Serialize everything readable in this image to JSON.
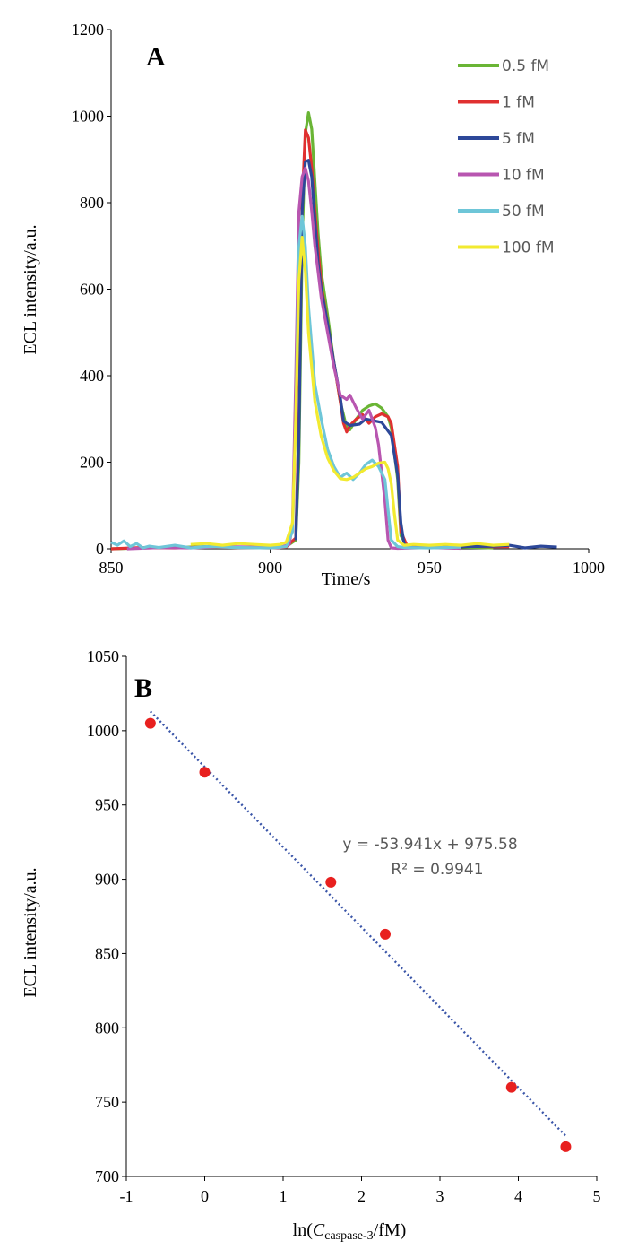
{
  "chart_data": [
    {
      "type": "line",
      "panel_label": "A",
      "xlabel": "Time/s",
      "ylabel": "ECL intensity/a.u.",
      "xlim": [
        850,
        1000
      ],
      "ylim": [
        0,
        1200
      ],
      "xticks": [
        "850",
        "900",
        "950",
        "1000"
      ],
      "yticks": [
        "0",
        "200",
        "400",
        "600",
        "800",
        "1000",
        "1200"
      ],
      "legend_position": "top-right",
      "series": [
        {
          "name": "0.5 fM",
          "color": "#6ab535",
          "x": [
            850,
            860,
            870,
            880,
            890,
            900,
            905,
            908,
            909,
            910,
            911,
            912,
            913,
            914,
            915,
            916,
            918,
            920,
            922,
            924,
            925,
            927,
            929,
            931,
            933,
            935,
            937,
            938,
            940,
            941,
            943,
            950,
            960,
            970
          ],
          "y": [
            0,
            2,
            3,
            5,
            4,
            3,
            5,
            20,
            200,
            700,
            960,
            1008,
            970,
            850,
            730,
            640,
            540,
            430,
            340,
            280,
            275,
            300,
            320,
            330,
            335,
            325,
            305,
            280,
            160,
            30,
            5,
            3,
            4,
            2
          ]
        },
        {
          "name": "1 fM",
          "color": "#e03030",
          "x": [
            850,
            860,
            870,
            880,
            890,
            900,
            905,
            908,
            909,
            910,
            911,
            912,
            913,
            914,
            915,
            916,
            918,
            920,
            922,
            923,
            924,
            925,
            927,
            929,
            931,
            933,
            935,
            937,
            938,
            940,
            941,
            943,
            950,
            960,
            970,
            975
          ],
          "y": [
            0,
            3,
            2,
            4,
            3,
            2,
            4,
            25,
            300,
            800,
            968,
            950,
            880,
            780,
            690,
            610,
            520,
            430,
            340,
            290,
            270,
            285,
            300,
            310,
            290,
            305,
            312,
            305,
            290,
            190,
            40,
            6,
            4,
            6,
            5,
            5
          ]
        },
        {
          "name": "5 fM",
          "color": "#2d4899",
          "x": [
            930,
            935,
            938,
            940,
            941,
            942,
            943,
            945,
            950,
            960,
            970,
            975,
            980,
            985,
            990,
            908,
            909,
            910,
            911,
            912,
            913,
            914,
            915,
            916,
            918,
            920,
            922,
            923,
            925,
            928
          ],
          "y": [
            300,
            292,
            262,
            170,
            60,
            12,
            5,
            3,
            4,
            5,
            6,
            8,
            2,
            6,
            4,
            20,
            250,
            780,
            895,
            898,
            860,
            760,
            660,
            600,
            520,
            430,
            350,
            295,
            285,
            288
          ]
        },
        {
          "name": "10 fM",
          "color": "#b856b0",
          "x": [
            855,
            865,
            875,
            885,
            895,
            903,
            906,
            907,
            908,
            909,
            910,
            911,
            912,
            913,
            914,
            915,
            916,
            918,
            920,
            922,
            924,
            925,
            927,
            929,
            931,
            933,
            934,
            936,
            937,
            938,
            940,
            945,
            950,
            960
          ],
          "y": [
            0,
            3,
            2,
            5,
            4,
            3,
            10,
            60,
            400,
            780,
            860,
            880,
            850,
            780,
            700,
            640,
            580,
            500,
            420,
            355,
            345,
            355,
            325,
            300,
            320,
            280,
            240,
            110,
            20,
            2,
            1,
            2,
            3,
            1
          ]
        },
        {
          "name": "50 fM",
          "color": "#6ec6d8",
          "x": [
            850,
            852,
            854,
            856,
            858,
            860,
            862,
            865,
            870,
            875,
            880,
            890,
            900,
            905,
            907,
            908,
            909,
            910,
            911,
            912,
            914,
            916,
            918,
            920,
            922,
            924,
            926,
            928,
            930,
            932,
            934,
            936,
            937,
            938,
            940,
            942,
            950,
            960
          ],
          "y": [
            15,
            8,
            18,
            5,
            12,
            2,
            6,
            3,
            8,
            2,
            5,
            3,
            2,
            5,
            40,
            300,
            700,
            768,
            700,
            560,
            380,
            300,
            230,
            190,
            165,
            175,
            160,
            175,
            195,
            205,
            190,
            160,
            90,
            20,
            5,
            3,
            2,
            4
          ]
        },
        {
          "name": "100 fM",
          "color": "#f2ea30",
          "x": [
            875,
            880,
            885,
            890,
            895,
            900,
            903,
            905,
            907,
            908,
            909,
            910,
            911,
            912,
            914,
            916,
            918,
            920,
            922,
            924,
            926,
            928,
            930,
            932,
            934,
            936,
            937,
            938,
            939,
            940,
            942,
            945,
            950,
            955,
            960,
            965,
            970,
            975
          ],
          "y": [
            10,
            12,
            8,
            12,
            10,
            8,
            10,
            15,
            60,
            300,
            620,
            720,
            640,
            500,
            340,
            260,
            210,
            180,
            162,
            160,
            165,
            175,
            185,
            190,
            198,
            200,
            185,
            150,
            80,
            20,
            8,
            10,
            8,
            10,
            8,
            12,
            8,
            10
          ]
        }
      ]
    },
    {
      "type": "scatter",
      "panel_label": "B",
      "xlabel_prefix": "ln(",
      "xlabel_var": "C",
      "xlabel_sub": "caspase-3",
      "xlabel_suffix": "/fM)",
      "ylabel": "ECL intensity/a.u.",
      "xlim": [
        -1,
        5
      ],
      "ylim": [
        700,
        1050
      ],
      "xticks": [
        "-1",
        "0",
        "1",
        "2",
        "3",
        "4",
        "5"
      ],
      "yticks": [
        "700",
        "750",
        "800",
        "850",
        "900",
        "950",
        "1000",
        "1050"
      ],
      "points": {
        "color": "#e8201f",
        "x": [
          -0.693,
          0,
          1.609,
          2.303,
          3.912,
          4.605
        ],
        "y": [
          1005,
          972,
          898,
          863,
          760,
          720
        ]
      },
      "trendline": {
        "color": "#3a55a8",
        "slope": -53.941,
        "intercept": 975.58,
        "x_range": [
          -0.693,
          4.605
        ],
        "equation": "y = -53.941x + 975.58",
        "r_squared": "R² = 0.9941"
      }
    }
  ]
}
